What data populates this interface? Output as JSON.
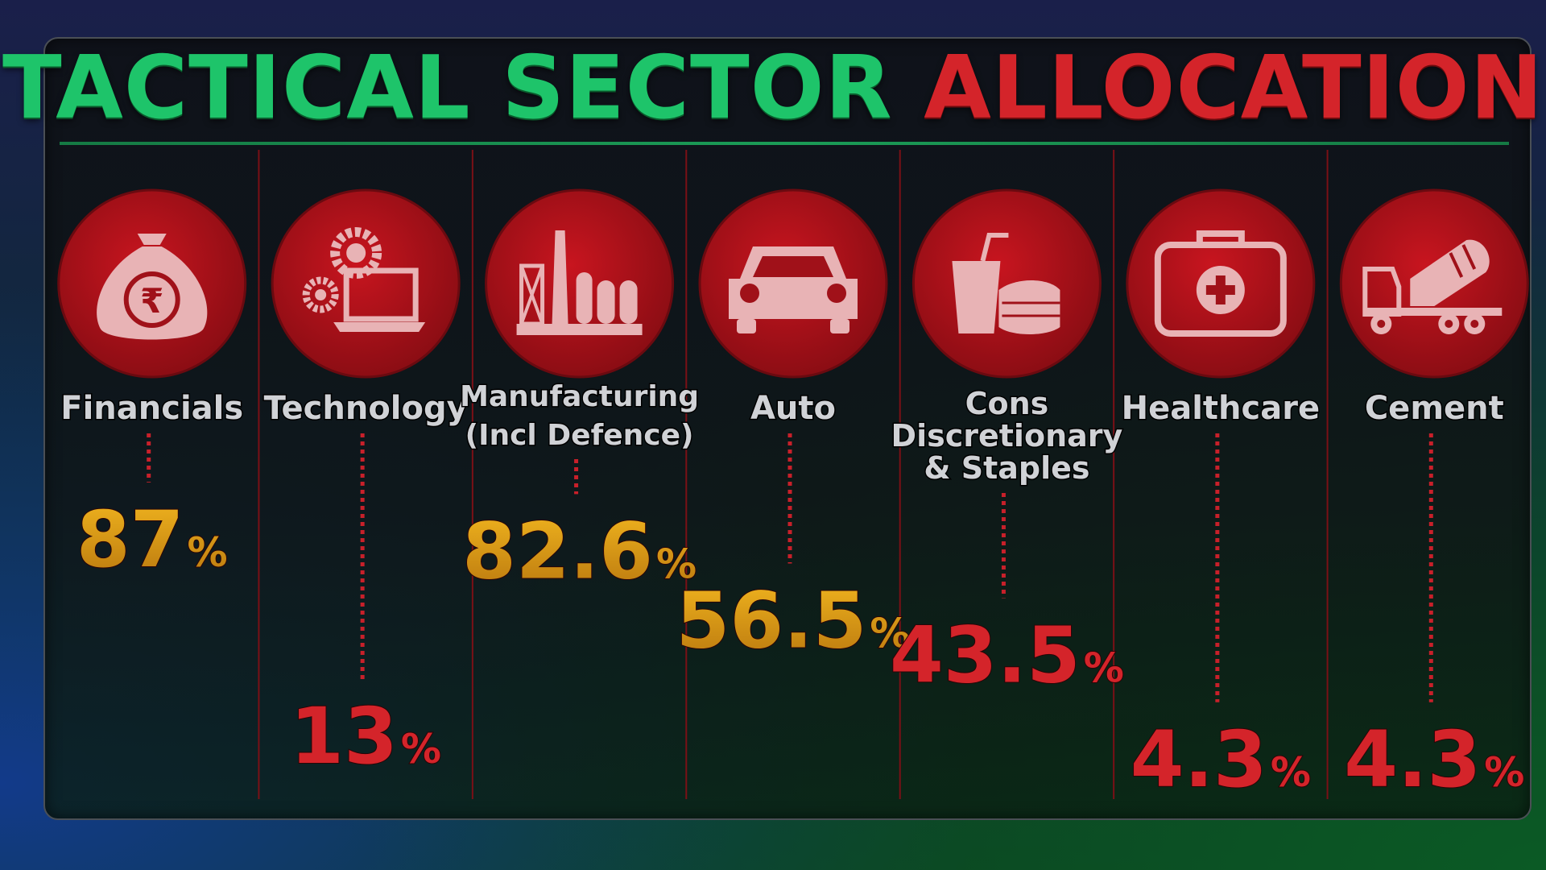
{
  "title": {
    "part1": "TACTICAL SECTOR ",
    "part2": "ALLOCATION"
  },
  "colors": {
    "green": "#1ec46a",
    "red": "#d4242a",
    "gold": "#e0a21a",
    "icon_circle": "#b5121b",
    "icon_glyph": "#e8b3b5",
    "label": "#d0d2d6"
  },
  "chart_data": {
    "type": "bar",
    "categories": [
      [
        "Financials"
      ],
      [
        "Technology"
      ],
      [
        "Manufacturing",
        "(Incl Defence)"
      ],
      [
        "Auto"
      ],
      [
        "Cons",
        "Discretionary",
        "& Staples"
      ],
      [
        "Healthcare"
      ],
      [
        "Cement"
      ]
    ],
    "icons": [
      "money-bag-icon",
      "gears-laptop-icon",
      "factory-icon",
      "car-icon",
      "food-drink-icon",
      "first-aid-kit-icon",
      "cement-mixer-icon"
    ],
    "values": [
      87,
      13,
      82.6,
      56.5,
      43.5,
      4.3,
      4.3
    ],
    "value_labels": [
      "87",
      "13",
      "82.6",
      "56.5",
      "43.5",
      "4.3",
      "4.3"
    ],
    "unit": "%",
    "ylim": [
      0,
      100
    ]
  }
}
